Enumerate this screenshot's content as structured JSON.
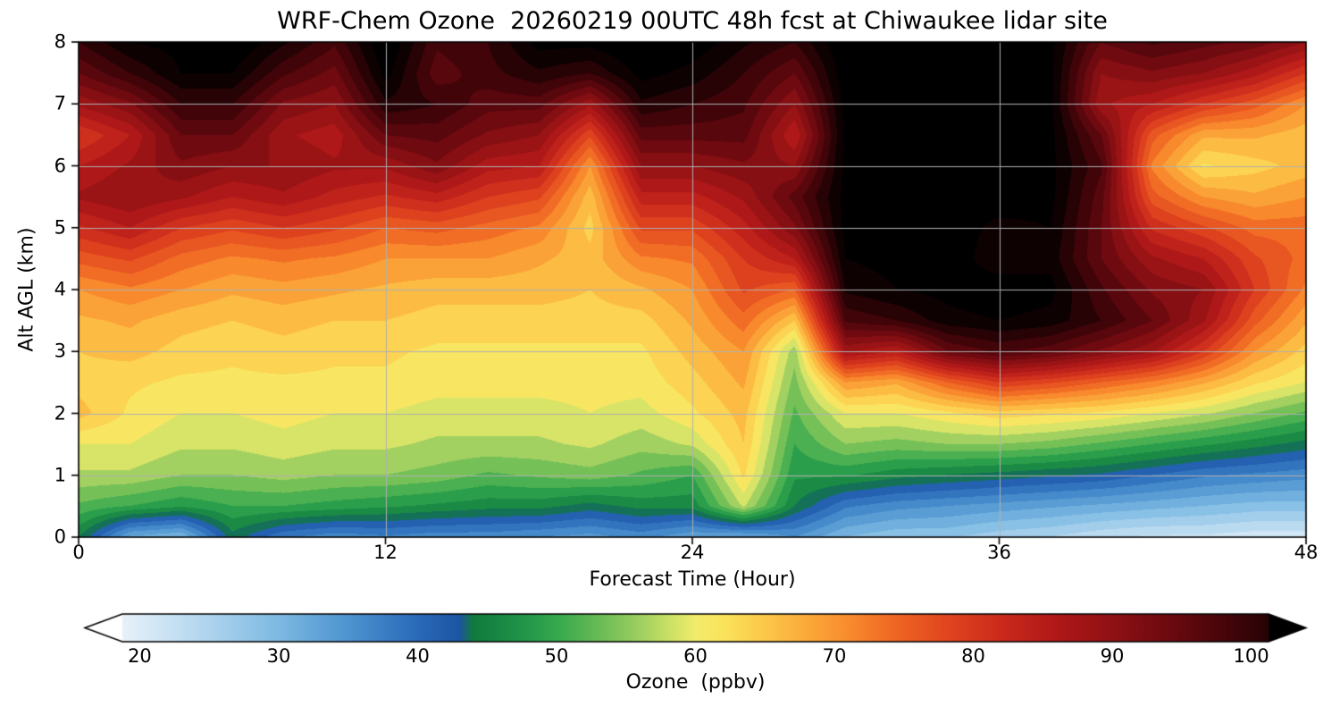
{
  "chart_data": {
    "type": "heatmap",
    "title": "WRF-Chem Ozone  20260219 00UTC 48h fcst at Chiwaukee lidar site",
    "xlabel": "Forecast Time (Hour)",
    "ylabel": "Alt AGL (km)",
    "xlim": [
      0,
      48
    ],
    "ylim": [
      0,
      8
    ],
    "xticks": [
      0,
      12,
      24,
      36,
      48
    ],
    "yticks": [
      0,
      1,
      2,
      3,
      4,
      5,
      6,
      7,
      8
    ],
    "grid": true,
    "x": [
      0,
      2,
      4,
      6,
      8,
      10,
      12,
      14,
      16,
      18,
      20,
      22,
      24,
      26,
      28,
      30,
      32,
      34,
      36,
      38,
      40,
      42,
      44,
      46,
      48
    ],
    "y": [
      0,
      0.5,
      1,
      1.5,
      2,
      2.5,
      3,
      3.5,
      4,
      4.5,
      5,
      5.5,
      6,
      6.5,
      7,
      7.5,
      8
    ],
    "values_units": "ppbv",
    "values": [
      [
        45,
        32,
        30,
        44,
        38,
        36,
        37,
        36,
        36,
        35,
        34,
        36,
        33,
        32,
        35,
        30,
        28,
        28,
        26,
        25,
        23,
        22,
        22,
        21,
        21
      ],
      [
        52,
        50,
        48,
        50,
        50,
        49,
        48,
        47,
        46,
        46,
        44,
        46,
        46,
        58,
        45,
        38,
        36,
        35,
        34,
        33,
        32,
        31,
        30,
        29,
        29
      ],
      [
        57,
        57,
        55,
        55,
        56,
        55,
        55,
        54,
        52,
        53,
        54,
        52,
        50,
        63,
        48,
        48,
        46,
        45,
        44,
        43,
        42,
        40,
        38,
        37,
        36
      ],
      [
        60,
        60,
        58,
        58,
        59,
        58,
        58,
        57,
        57,
        57,
        58,
        56,
        58,
        65,
        50,
        55,
        54,
        55,
        55,
        54,
        52,
        50,
        48,
        46,
        44
      ],
      [
        66,
        62,
        60,
        60,
        61,
        60,
        60,
        59,
        59,
        59,
        60,
        59,
        62,
        66,
        52,
        60,
        60,
        62,
        64,
        63,
        62,
        60,
        58,
        55,
        52
      ],
      [
        64,
        63,
        62,
        62,
        62,
        62,
        62,
        61,
        61,
        61,
        61,
        61,
        64,
        68,
        54,
        70,
        68,
        75,
        80,
        78,
        75,
        72,
        68,
        63,
        60
      ],
      [
        65,
        66,
        64,
        63,
        64,
        63,
        63,
        62,
        62,
        62,
        62,
        62,
        66,
        70,
        56,
        88,
        85,
        95,
        98,
        96,
        92,
        88,
        80,
        70,
        64
      ],
      [
        67,
        68,
        66,
        65,
        66,
        65,
        65,
        64,
        64,
        64,
        64,
        64,
        68,
        74,
        65,
        98,
        100,
        104,
        105,
        104,
        100,
        95,
        88,
        76,
        68
      ],
      [
        70,
        72,
        70,
        68,
        69,
        68,
        67,
        66,
        66,
        66,
        65,
        67,
        70,
        78,
        75,
        103,
        105,
        106,
        107,
        106,
        98,
        92,
        90,
        80,
        72
      ],
      [
        76,
        78,
        74,
        72,
        73,
        72,
        70,
        70,
        70,
        68,
        66,
        72,
        73,
        80,
        85,
        105,
        106,
        107,
        103,
        104,
        95,
        88,
        85,
        78,
        74
      ],
      [
        82,
        85,
        80,
        78,
        80,
        78,
        75,
        76,
        74,
        72,
        64,
        78,
        78,
        84,
        92,
        106,
        107,
        107,
        104,
        105,
        95,
        82,
        78,
        74,
        74
      ],
      [
        88,
        90,
        88,
        85,
        87,
        84,
        82,
        84,
        80,
        78,
        66,
        84,
        84,
        88,
        96,
        106,
        107,
        107,
        107,
        106,
        96,
        76,
        70,
        68,
        70
      ],
      [
        85,
        88,
        92,
        90,
        90,
        88,
        88,
        92,
        86,
        85,
        70,
        90,
        90,
        92,
        90,
        106,
        107,
        107,
        107,
        106,
        98,
        72,
        62,
        64,
        66
      ],
      [
        80,
        85,
        95,
        95,
        88,
        86,
        95,
        96,
        92,
        90,
        78,
        96,
        96,
        96,
        85,
        106,
        107,
        107,
        107,
        106,
        95,
        76,
        68,
        68,
        66
      ],
      [
        88,
        92,
        100,
        100,
        92,
        90,
        102,
        100,
        96,
        96,
        88,
        102,
        100,
        98,
        90,
        106,
        107,
        107,
        107,
        106,
        88,
        85,
        80,
        76,
        70
      ],
      [
        95,
        100,
        105,
        105,
        98,
        94,
        106,
        96,
        99,
        102,
        100,
        106,
        104,
        100,
        95,
        107,
        107,
        107,
        107,
        106,
        90,
        92,
        90,
        86,
        80
      ],
      [
        100,
        105,
        106,
        108,
        103,
        98,
        108,
        98,
        100,
        106,
        106,
        108,
        107,
        103,
        100,
        108,
        107,
        107,
        107,
        106,
        95,
        98,
        96,
        94,
        90
      ]
    ],
    "colorbar": {
      "label": "Ozone  (ppbv)",
      "ticks": [
        20,
        30,
        40,
        50,
        60,
        70,
        80,
        90,
        100
      ],
      "range": [
        18.75,
        101.25
      ],
      "extend": "both",
      "extend_low_color": "#ffffff",
      "extend_high_color": "#000000",
      "stops": [
        [
          15,
          "#ffffff"
        ],
        [
          20,
          "#ddecf8"
        ],
        [
          25,
          "#aed4ee"
        ],
        [
          30,
          "#7db9e2"
        ],
        [
          35,
          "#4e94d0"
        ],
        [
          40,
          "#2a6ab8"
        ],
        [
          43,
          "#1c55a4"
        ],
        [
          44,
          "#117a3d"
        ],
        [
          47,
          "#1e9048"
        ],
        [
          50,
          "#35a84e"
        ],
        [
          53,
          "#68bb55"
        ],
        [
          56,
          "#9ecf60"
        ],
        [
          58,
          "#c8e065"
        ],
        [
          60,
          "#f2ec6b"
        ],
        [
          62,
          "#fbe35c"
        ],
        [
          65,
          "#fcc84a"
        ],
        [
          68,
          "#fbaa3a"
        ],
        [
          71,
          "#f98c2e"
        ],
        [
          74,
          "#f06a24"
        ],
        [
          78,
          "#e1461f"
        ],
        [
          82,
          "#cb2a1c"
        ],
        [
          86,
          "#b01818"
        ],
        [
          90,
          "#901114"
        ],
        [
          94,
          "#6d0a10"
        ],
        [
          98,
          "#47050a"
        ],
        [
          102,
          "#200205"
        ],
        [
          105,
          "#000000"
        ],
        [
          110,
          "#000000"
        ]
      ]
    },
    "grid_color": "#b0b0b0",
    "axis_color": "#000000"
  }
}
